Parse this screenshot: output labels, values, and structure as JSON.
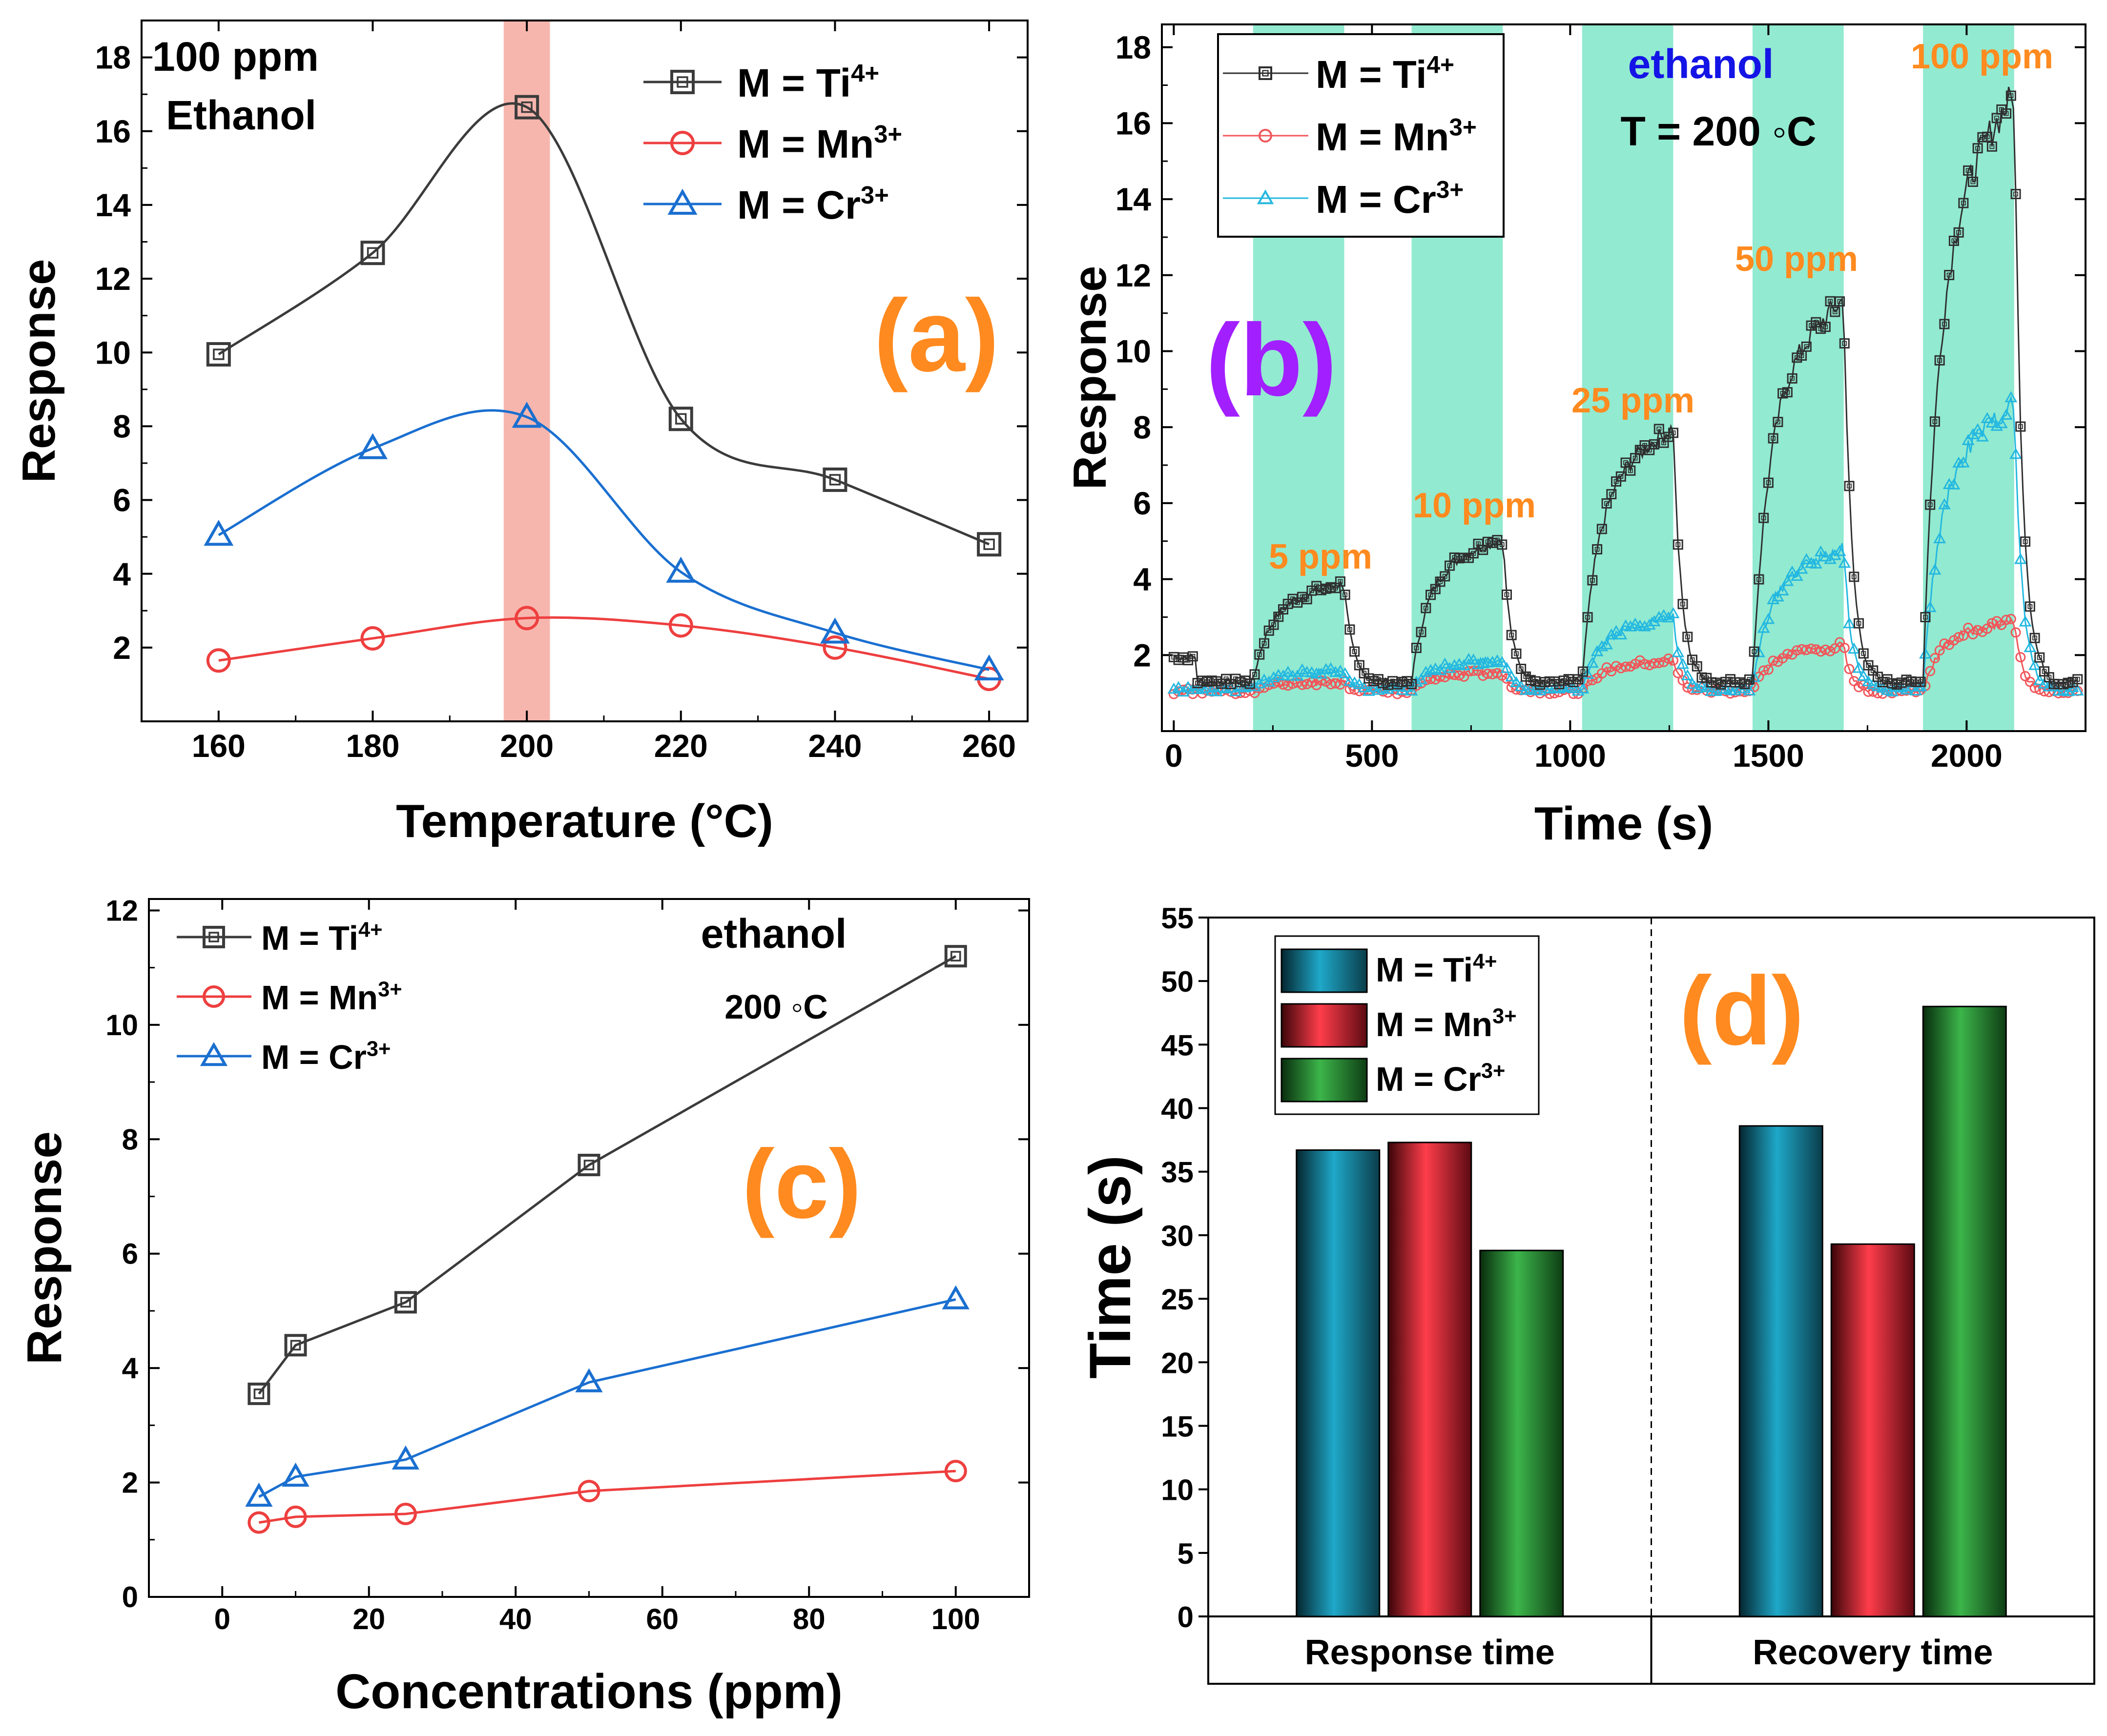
{
  "chart_data": [
    {
      "id": "a",
      "type": "line",
      "panel_label": "(a)",
      "xlabel": "Temperature (°C)",
      "ylabel": "Response",
      "xlim": [
        150,
        265
      ],
      "ylim": [
        0,
        19
      ],
      "xticks": [
        160,
        180,
        200,
        220,
        240,
        260
      ],
      "yticks": [
        2,
        4,
        6,
        8,
        10,
        12,
        14,
        16,
        18
      ],
      "highlight_band": {
        "x0": 197,
        "x1": 203,
        "color": "#f7b6ad"
      },
      "annotations": [
        {
          "text": "100 ppm",
          "role": "gas-conc"
        },
        {
          "text": "Ethanol",
          "role": "gas-name"
        }
      ],
      "legend_position": "top-right",
      "series": [
        {
          "name": "M = Ti",
          "sup": "4+",
          "color": "#3b3b3b",
          "marker": "square",
          "x": [
            160,
            180,
            200,
            220,
            240,
            260
          ],
          "values": [
            9.95,
            12.7,
            16.65,
            8.2,
            6.55,
            4.8
          ]
        },
        {
          "name": "M = Mn",
          "sup": "3+",
          "color": "#ee3f3f",
          "marker": "circle",
          "x": [
            160,
            180,
            200,
            220,
            240,
            260
          ],
          "values": [
            1.65,
            2.25,
            2.8,
            2.6,
            2.0,
            1.15
          ]
        },
        {
          "name": "M = Cr",
          "sup": "3+",
          "color": "#1a6fd0",
          "marker": "triangle",
          "x": [
            160,
            180,
            200,
            220,
            240,
            260
          ],
          "values": [
            5.05,
            7.4,
            8.25,
            4.05,
            2.4,
            1.4
          ]
        }
      ]
    },
    {
      "id": "b",
      "type": "line",
      "panel_label": "(b)",
      "xlabel": "Time (s)",
      "ylabel": "Response",
      "xlim": [
        -30,
        2300
      ],
      "ylim": [
        0,
        18.6
      ],
      "xticks": [
        0,
        500,
        1000,
        1500,
        2000
      ],
      "yticks": [
        2,
        4,
        6,
        8,
        10,
        12,
        14,
        16,
        18
      ],
      "exposure_bands": [
        [
          200,
          430
        ],
        [
          600,
          830
        ],
        [
          1030,
          1260
        ],
        [
          1460,
          1690
        ],
        [
          1890,
          2120
        ]
      ],
      "band_color": "#92ead0",
      "concentration_labels": [
        "5 ppm",
        "10 ppm",
        "25 ppm",
        "50 ppm",
        "100 ppm"
      ],
      "annotations": [
        {
          "text": "ethanol",
          "role": "gas-name"
        },
        {
          "text": "T = 200 ◦C",
          "role": "temperature"
        }
      ],
      "legend_position": "top-left",
      "series": [
        {
          "name": "M = Ti",
          "sup": "4+",
          "color": "#2f2f2f",
          "marker": "square",
          "baseline": 1.3,
          "peaks": [
            3.9,
            5.1,
            8.0,
            11.4,
            16.8
          ]
        },
        {
          "name": "M = Mn",
          "sup": "3+",
          "color": "#f0565a",
          "marker": "circle",
          "baseline": 1.05,
          "peaks": [
            1.3,
            1.55,
            1.85,
            2.25,
            2.9
          ]
        },
        {
          "name": "M = Cr",
          "sup": "3+",
          "color": "#24b8e0",
          "marker": "triangle",
          "baseline": 1.1,
          "peaks": [
            1.6,
            1.9,
            3.0,
            4.8,
            8.6
          ]
        }
      ]
    },
    {
      "id": "c",
      "type": "line",
      "panel_label": "(c)",
      "xlabel": "Concentrations (ppm)",
      "ylabel": "Response",
      "xlim": [
        -10,
        110
      ],
      "ylim": [
        0,
        12.2
      ],
      "xticks": [
        0,
        20,
        40,
        60,
        80,
        100
      ],
      "yticks": [
        0,
        2,
        4,
        6,
        8,
        10,
        12
      ],
      "annotations": [
        {
          "text": "ethanol",
          "role": "gas-name"
        },
        {
          "text": "200 ◦C",
          "role": "temperature"
        }
      ],
      "legend_position": "top-left",
      "series": [
        {
          "name": "M = Ti",
          "sup": "4+",
          "color": "#3b3b3b",
          "marker": "square",
          "x": [
            5,
            10,
            25,
            50,
            100
          ],
          "values": [
            3.55,
            4.4,
            5.15,
            7.55,
            11.2
          ]
        },
        {
          "name": "M = Mn",
          "sup": "3+",
          "color": "#ee3f3f",
          "marker": "circle",
          "x": [
            5,
            10,
            25,
            50,
            100
          ],
          "values": [
            1.3,
            1.4,
            1.45,
            1.85,
            2.2
          ]
        },
        {
          "name": "M = Cr",
          "sup": "3+",
          "color": "#1a6fd0",
          "marker": "triangle",
          "x": [
            5,
            10,
            25,
            50,
            100
          ],
          "values": [
            1.75,
            2.1,
            2.4,
            3.75,
            5.2
          ]
        }
      ]
    },
    {
      "id": "d",
      "type": "bar",
      "panel_label": "(d)",
      "xlabel": "",
      "ylabel": "Time (s)",
      "ylim": [
        0,
        55
      ],
      "yticks": [
        0,
        5,
        10,
        15,
        20,
        25,
        30,
        35,
        40,
        45,
        50,
        55
      ],
      "categories": [
        "Response time",
        "Recovery time"
      ],
      "legend_position": "top-left",
      "series": [
        {
          "name": "M = Ti",
          "sup": "4+",
          "color": "#1fa8c9",
          "values": [
            36.7,
            38.6
          ]
        },
        {
          "name": "M = Mn",
          "sup": "3+",
          "color": "#ff3d4b",
          "values": [
            37.3,
            29.3
          ]
        },
        {
          "name": "M = Cr",
          "sup": "3+",
          "color": "#3cb54a",
          "values": [
            28.8,
            48.0
          ]
        }
      ]
    }
  ]
}
